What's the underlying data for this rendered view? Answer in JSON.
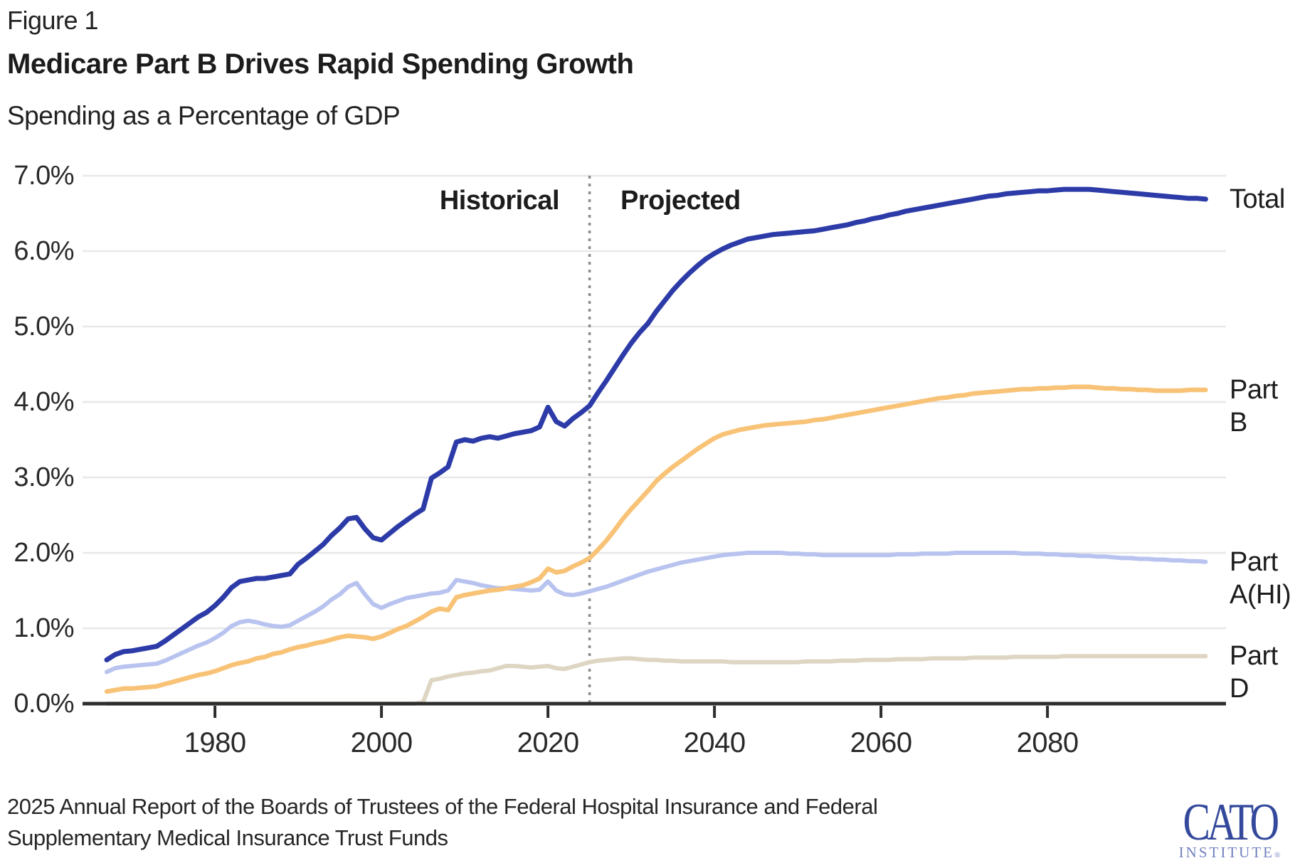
{
  "header": {
    "figure_label": "Figure 1",
    "title": "Medicare Part B Drives Rapid Spending Growth",
    "subtitle": "Spending as a Percentage of GDP"
  },
  "annotations": {
    "historical_label": "Historical",
    "projected_label": "Projected"
  },
  "source": {
    "line1": "2025 Annual Report of the Boards of Trustees of the Federal Hospital Insurance and Federal",
    "line2": "Supplementary Medical Insurance Trust Funds"
  },
  "logo": {
    "wordmark": "CATO",
    "subtext": "INSTITUTE",
    "registered_mark": "®",
    "wordmark_color": "#34499c",
    "subtext_color": "#7181bf"
  },
  "chart_data": {
    "type": "line",
    "title": "Medicare Part B Drives Rapid Spending Growth",
    "ylabel": "Spending as a Percentage of GDP",
    "x_start": 1967,
    "x_end": 2099,
    "ylim": [
      0,
      7
    ],
    "grid": "horizontal-only",
    "gridline_color": "#e8e8e8",
    "axis_color": "#2d2d2d",
    "tick_label_color": "#2a2a2a",
    "legend_position": "labels-at-line-ends-right",
    "divider": {
      "year": 2025,
      "style": "dotted",
      "color": "#8c8c8c"
    },
    "y_ticks": [
      {
        "value": 7,
        "label": "7.0%"
      },
      {
        "value": 6,
        "label": "6.0%"
      },
      {
        "value": 5,
        "label": "5.0%"
      },
      {
        "value": 4,
        "label": "4.0%"
      },
      {
        "value": 3,
        "label": "3.0%"
      },
      {
        "value": 2,
        "label": "2.0%"
      },
      {
        "value": 1,
        "label": "1.0%"
      },
      {
        "value": 0,
        "label": "0.0%"
      }
    ],
    "x_ticks": [
      {
        "year": 1980,
        "label": "1980"
      },
      {
        "year": 2000,
        "label": "2000"
      },
      {
        "year": 2020,
        "label": "2020"
      },
      {
        "year": 2040,
        "label": "2040"
      },
      {
        "year": 2060,
        "label": "2060"
      },
      {
        "year": 2080,
        "label": "2080"
      }
    ],
    "series": [
      {
        "key": "part-d",
        "name": "Part D",
        "label_lines": [
          "Part",
          "D"
        ],
        "color": "#ded5c3",
        "stroke_width": 6,
        "start_year": 1967,
        "values": [
          0,
          0,
          0,
          0,
          0,
          0,
          0,
          0,
          0,
          0,
          0,
          0,
          0,
          0,
          0,
          0,
          0,
          0,
          0,
          0,
          0,
          0,
          0,
          0,
          0,
          0,
          0,
          0,
          0,
          0,
          0,
          0,
          0,
          0,
          0,
          0,
          0,
          0,
          0.02,
          0.31,
          0.33,
          0.36,
          0.38,
          0.4,
          0.41,
          0.43,
          0.44,
          0.47,
          0.5,
          0.5,
          0.49,
          0.48,
          0.49,
          0.5,
          0.47,
          0.46,
          0.49,
          0.52,
          0.55,
          0.57,
          0.58,
          0.59,
          0.6,
          0.6,
          0.59,
          0.58,
          0.58,
          0.57,
          0.57,
          0.56,
          0.56,
          0.56,
          0.56,
          0.56,
          0.56,
          0.55,
          0.55,
          0.55,
          0.55,
          0.55,
          0.55,
          0.55,
          0.55,
          0.55,
          0.56,
          0.56,
          0.56,
          0.56,
          0.57,
          0.57,
          0.57,
          0.58,
          0.58,
          0.58,
          0.58,
          0.59,
          0.59,
          0.59,
          0.59,
          0.6,
          0.6,
          0.6,
          0.6,
          0.6,
          0.61,
          0.61,
          0.61,
          0.61,
          0.61,
          0.62,
          0.62,
          0.62,
          0.62,
          0.62,
          0.62,
          0.63,
          0.63,
          0.63,
          0.63,
          0.63,
          0.63,
          0.63,
          0.63,
          0.63,
          0.63,
          0.63,
          0.63,
          0.63,
          0.63,
          0.63,
          0.63,
          0.63,
          0.63
        ]
      },
      {
        "key": "part-a",
        "name": "Part A(HI)",
        "label_lines": [
          "Part",
          "A(HI)"
        ],
        "color": "#b8c3ef",
        "stroke_width": 6,
        "start_year": 1967,
        "values": [
          0.42,
          0.47,
          0.49,
          0.5,
          0.51,
          0.52,
          0.53,
          0.57,
          0.62,
          0.67,
          0.72,
          0.77,
          0.81,
          0.87,
          0.94,
          1.03,
          1.08,
          1.1,
          1.08,
          1.05,
          1.03,
          1.02,
          1.04,
          1.1,
          1.16,
          1.22,
          1.29,
          1.38,
          1.45,
          1.55,
          1.6,
          1.45,
          1.32,
          1.27,
          1.32,
          1.36,
          1.4,
          1.42,
          1.44,
          1.46,
          1.47,
          1.5,
          1.64,
          1.62,
          1.6,
          1.57,
          1.55,
          1.53,
          1.53,
          1.52,
          1.51,
          1.5,
          1.51,
          1.62,
          1.5,
          1.45,
          1.44,
          1.46,
          1.49,
          1.52,
          1.55,
          1.59,
          1.63,
          1.67,
          1.71,
          1.75,
          1.78,
          1.81,
          1.84,
          1.87,
          1.89,
          1.91,
          1.93,
          1.95,
          1.97,
          1.98,
          1.99,
          2.0,
          2.0,
          2.0,
          2.0,
          2.0,
          1.99,
          1.99,
          1.98,
          1.98,
          1.97,
          1.97,
          1.97,
          1.97,
          1.97,
          1.97,
          1.97,
          1.97,
          1.97,
          1.98,
          1.98,
          1.98,
          1.99,
          1.99,
          1.99,
          1.99,
          2.0,
          2.0,
          2.0,
          2.0,
          2.0,
          2.0,
          2.0,
          2.0,
          1.99,
          1.99,
          1.99,
          1.98,
          1.98,
          1.97,
          1.97,
          1.96,
          1.96,
          1.95,
          1.95,
          1.94,
          1.93,
          1.93,
          1.92,
          1.92,
          1.91,
          1.91,
          1.9,
          1.9,
          1.89,
          1.89,
          1.88
        ]
      },
      {
        "key": "part-b",
        "name": "Part B",
        "label_lines": [
          "Part",
          "B"
        ],
        "color": "#f8c377",
        "stroke_width": 6.5,
        "start_year": 1967,
        "values": [
          0.16,
          0.18,
          0.2,
          0.2,
          0.21,
          0.22,
          0.23,
          0.26,
          0.29,
          0.32,
          0.35,
          0.38,
          0.4,
          0.43,
          0.47,
          0.51,
          0.54,
          0.56,
          0.6,
          0.62,
          0.66,
          0.68,
          0.72,
          0.75,
          0.77,
          0.8,
          0.82,
          0.85,
          0.88,
          0.9,
          0.89,
          0.88,
          0.86,
          0.89,
          0.94,
          0.99,
          1.03,
          1.09,
          1.15,
          1.22,
          1.26,
          1.24,
          1.41,
          1.44,
          1.46,
          1.48,
          1.5,
          1.51,
          1.53,
          1.55,
          1.57,
          1.61,
          1.66,
          1.79,
          1.74,
          1.76,
          1.82,
          1.87,
          1.93,
          2.04,
          2.16,
          2.3,
          2.45,
          2.58,
          2.7,
          2.82,
          2.95,
          3.05,
          3.14,
          3.22,
          3.3,
          3.38,
          3.45,
          3.52,
          3.57,
          3.6,
          3.63,
          3.65,
          3.67,
          3.69,
          3.7,
          3.71,
          3.72,
          3.73,
          3.74,
          3.76,
          3.77,
          3.79,
          3.81,
          3.83,
          3.85,
          3.87,
          3.89,
          3.91,
          3.93,
          3.95,
          3.97,
          3.99,
          4.01,
          4.03,
          4.05,
          4.06,
          4.08,
          4.09,
          4.11,
          4.12,
          4.13,
          4.14,
          4.15,
          4.16,
          4.17,
          4.17,
          4.18,
          4.18,
          4.19,
          4.19,
          4.2,
          4.2,
          4.2,
          4.19,
          4.18,
          4.18,
          4.17,
          4.17,
          4.16,
          4.16,
          4.15,
          4.15,
          4.15,
          4.15,
          4.16,
          4.16,
          4.16
        ]
      },
      {
        "key": "total",
        "name": "Total",
        "label_lines": [
          "Total"
        ],
        "color": "#2c3ba7",
        "stroke_width": 7,
        "start_year": 1967,
        "values": [
          0.58,
          0.65,
          0.69,
          0.7,
          0.72,
          0.74,
          0.76,
          0.83,
          0.91,
          0.99,
          1.07,
          1.15,
          1.21,
          1.3,
          1.41,
          1.54,
          1.62,
          1.64,
          1.66,
          1.66,
          1.68,
          1.7,
          1.72,
          1.85,
          1.93,
          2.02,
          2.11,
          2.23,
          2.33,
          2.45,
          2.47,
          2.32,
          2.2,
          2.17,
          2.26,
          2.35,
          2.43,
          2.51,
          2.58,
          2.99,
          3.06,
          3.14,
          3.47,
          3.5,
          3.48,
          3.52,
          3.54,
          3.52,
          3.55,
          3.58,
          3.6,
          3.62,
          3.67,
          3.93,
          3.74,
          3.68,
          3.78,
          3.86,
          3.95,
          4.12,
          4.28,
          4.45,
          4.62,
          4.78,
          4.92,
          5.04,
          5.2,
          5.34,
          5.48,
          5.6,
          5.71,
          5.81,
          5.9,
          5.97,
          6.03,
          6.08,
          6.12,
          6.16,
          6.18,
          6.2,
          6.22,
          6.23,
          6.24,
          6.25,
          6.26,
          6.27,
          6.29,
          6.31,
          6.33,
          6.35,
          6.38,
          6.4,
          6.43,
          6.45,
          6.48,
          6.5,
          6.53,
          6.55,
          6.57,
          6.59,
          6.61,
          6.63,
          6.65,
          6.67,
          6.69,
          6.71,
          6.73,
          6.74,
          6.76,
          6.77,
          6.78,
          6.79,
          6.8,
          6.8,
          6.81,
          6.82,
          6.82,
          6.82,
          6.82,
          6.81,
          6.8,
          6.79,
          6.78,
          6.77,
          6.76,
          6.75,
          6.74,
          6.73,
          6.72,
          6.71,
          6.7,
          6.7,
          6.69
        ]
      }
    ]
  }
}
